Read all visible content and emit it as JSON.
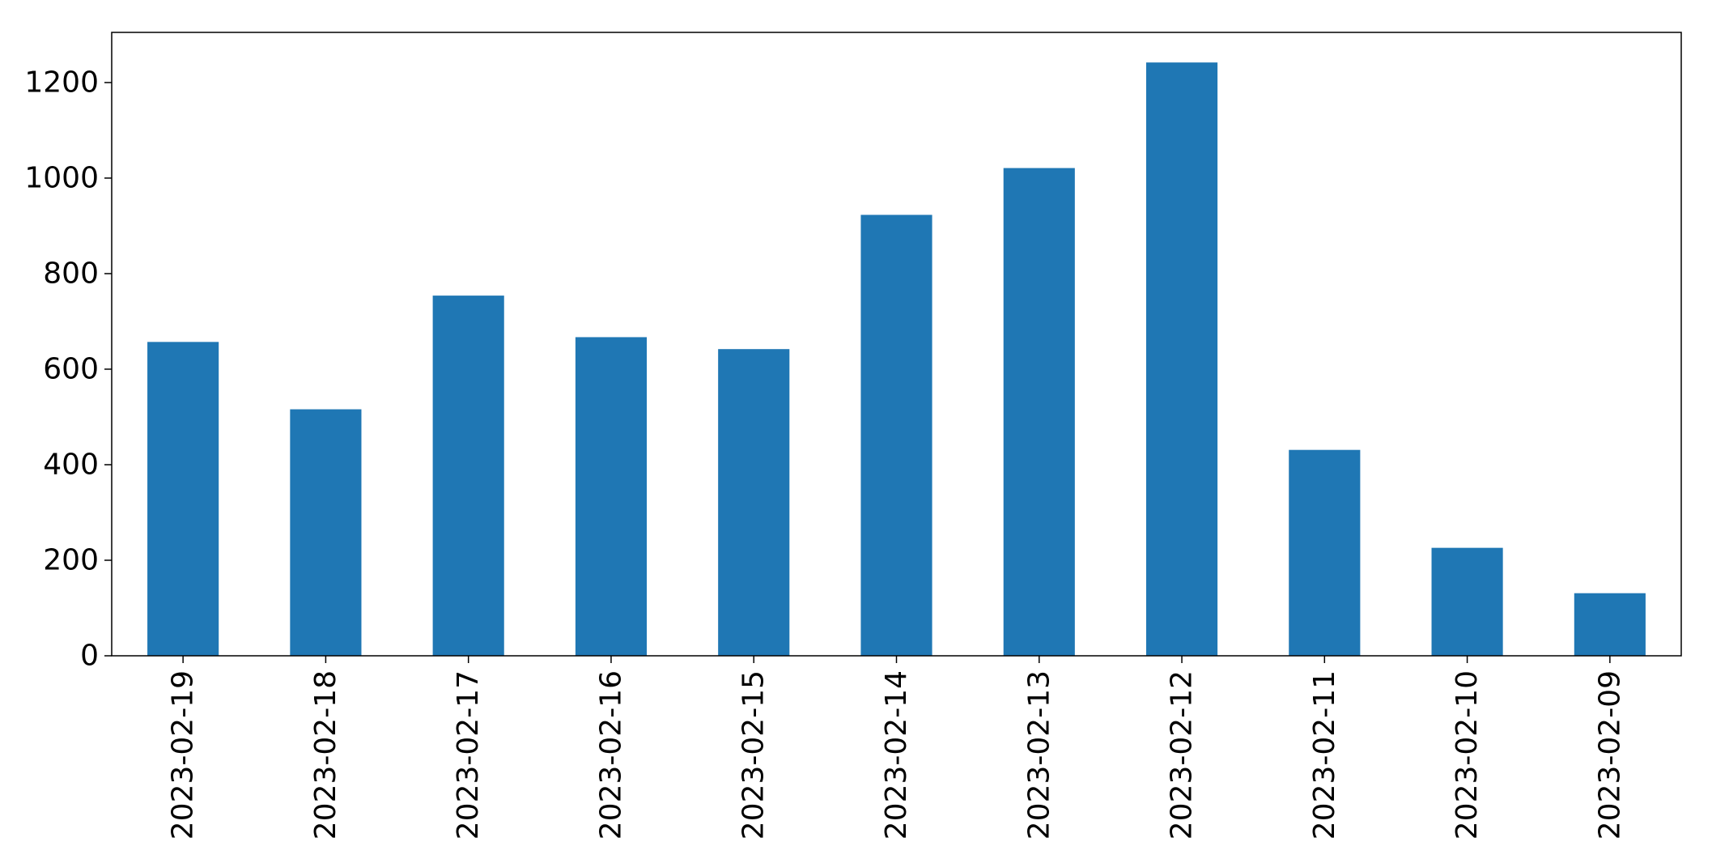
{
  "chart_data": {
    "type": "bar",
    "title": "",
    "xlabel": "",
    "ylabel": "",
    "categories": [
      "2023-02-19",
      "2023-02-18",
      "2023-02-17",
      "2023-02-16",
      "2023-02-15",
      "2023-02-14",
      "2023-02-13",
      "2023-02-12",
      "2023-02-11",
      "2023-02-10",
      "2023-02-09"
    ],
    "values": [
      657,
      516,
      754,
      667,
      642,
      923,
      1021,
      1242,
      431,
      226,
      131
    ],
    "ylim": [
      0,
      1305
    ],
    "yticks": [
      0,
      200,
      400,
      600,
      800,
      1000,
      1200
    ],
    "bar_color": "#1f77b4",
    "grid": false,
    "legend": "none"
  }
}
